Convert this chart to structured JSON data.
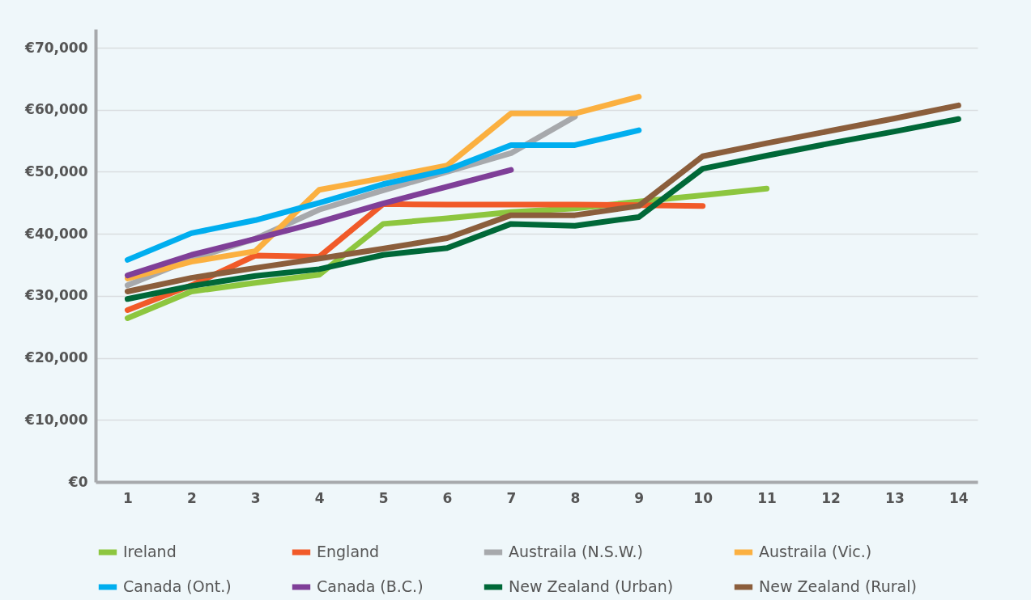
{
  "chart_data": {
    "type": "line",
    "x": [
      1,
      2,
      3,
      4,
      5,
      6,
      7,
      8,
      9,
      10,
      11,
      12,
      13,
      14
    ],
    "xlim": [
      0.5,
      14.3
    ],
    "xticks": [
      1,
      2,
      3,
      4,
      5,
      6,
      7,
      8,
      9,
      10,
      11,
      12,
      13,
      14
    ],
    "ylim": [
      0,
      73000
    ],
    "yticks": [
      {
        "value": 0,
        "label": "€0"
      },
      {
        "value": 10000,
        "label": "€10,000"
      },
      {
        "value": 20000,
        "label": "€20,000"
      },
      {
        "value": 30000,
        "label": "€30,000"
      },
      {
        "value": 40000,
        "label": "€40,000"
      },
      {
        "value": 50000,
        "label": "€50,000"
      },
      {
        "value": 60000,
        "label": "€60,000"
      },
      {
        "value": 70000,
        "label": "€70,000"
      }
    ],
    "grid": "y",
    "legend": "bottom",
    "marker": "none",
    "line_style": "solid",
    "series": [
      {
        "name": "Ireland",
        "color": "#8dc63f",
        "values": [
          26400,
          30700,
          32100,
          33400,
          41600,
          42500,
          43500,
          44100,
          45200,
          46200,
          47300,
          null,
          null,
          null
        ]
      },
      {
        "name": "England",
        "color": "#f15a29",
        "values": [
          27700,
          31700,
          36500,
          36300,
          44800,
          44700,
          44700,
          44700,
          44600,
          44500,
          null,
          null,
          null,
          null
        ]
      },
      {
        "name": "Austraila (N.S.W.)",
        "color": "#a7a9ac",
        "values": [
          31700,
          35900,
          39200,
          43900,
          47000,
          50000,
          53000,
          58900,
          null,
          null,
          null,
          null,
          null,
          null
        ]
      },
      {
        "name": "Austraila (Vic.)",
        "color": "#fbb040",
        "values": [
          32800,
          35500,
          37200,
          47100,
          49000,
          51000,
          59400,
          59400,
          62100,
          null,
          null,
          null,
          null,
          null
        ]
      },
      {
        "name": "Canada (Ont.)",
        "color": "#00aeef",
        "values": [
          35800,
          40100,
          42200,
          45000,
          48000,
          50300,
          54300,
          54300,
          56700,
          null,
          null,
          null,
          null,
          null
        ]
      },
      {
        "name": "Canada (B.C.)",
        "color": "#7f3f98",
        "values": [
          33300,
          36600,
          39200,
          41900,
          44900,
          47600,
          50300,
          null,
          null,
          null,
          null,
          null,
          null,
          null
        ]
      },
      {
        "name": "New Zealand (Urban)",
        "color": "#006838",
        "values": [
          29500,
          31600,
          33200,
          34300,
          36600,
          37700,
          41600,
          41300,
          42700,
          50500,
          52600,
          54600,
          56500,
          58500
        ]
      },
      {
        "name": "New Zealand (Rural)",
        "color": "#8b5e3c",
        "values": [
          30700,
          32900,
          34500,
          36000,
          37600,
          39300,
          43000,
          43000,
          44500,
          52500,
          54600,
          56600,
          58600,
          60700
        ]
      }
    ]
  }
}
